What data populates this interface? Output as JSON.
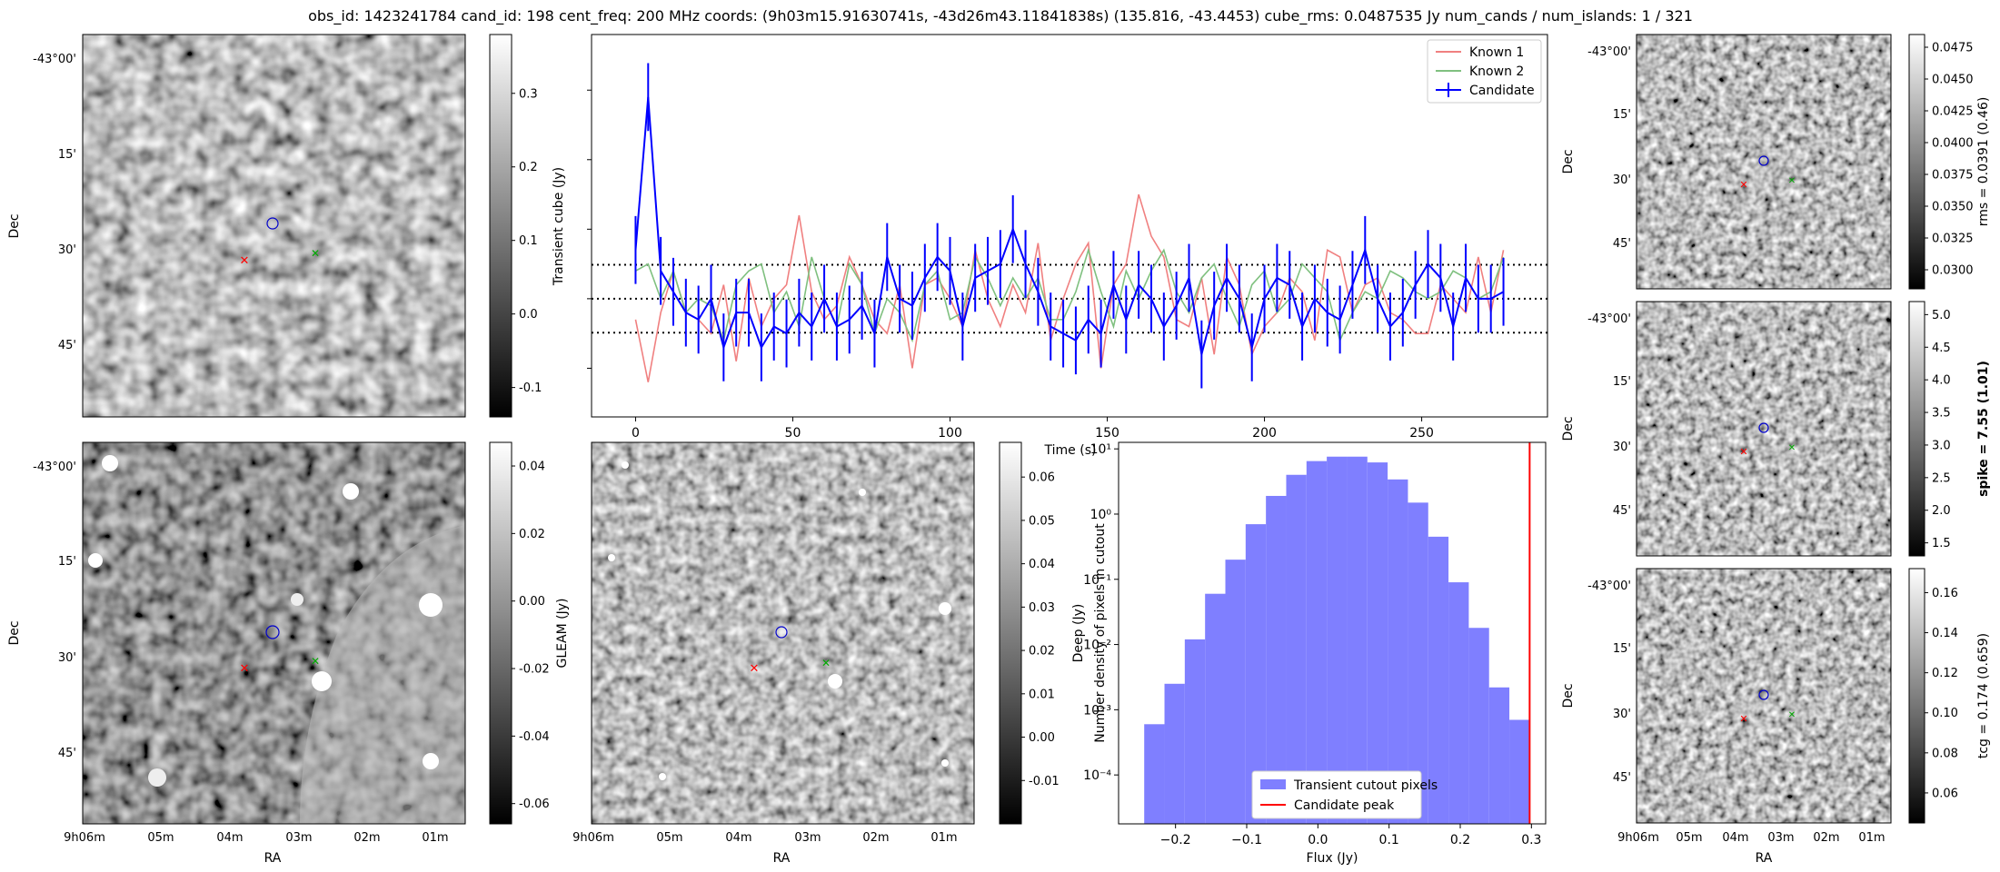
{
  "title": "obs_id: 1423241784 cand_id: 198 cent_freq: 200 MHz coords: (9h03m15.91630741s, -43d26m43.11841838s) (135.816, -43.4453) cube_rms: 0.0487535 Jy num_cands / num_islands: 1 / 321",
  "colors": {
    "known1": "#f08080",
    "known2": "#7fc07f",
    "candidate": "#0000ff",
    "hist": "#7f7fff",
    "peak": "#ff0000"
  },
  "dec_ticks": [
    "-43°00'",
    "15'",
    "30'",
    "45'"
  ],
  "ra_ticks": [
    "9h06m",
    "05m",
    "04m",
    "03m",
    "02m",
    "01m"
  ],
  "axis_labels": {
    "dec": "Dec",
    "ra": "RA"
  },
  "images": [
    {
      "id": "transient",
      "cbar_label": "Transient cube (Jy)",
      "cbar_ticks": [
        "0.3",
        "0.2",
        "0.1",
        "0.0",
        "-0.1"
      ],
      "cbar_values": [
        0.3,
        0.2,
        0.1,
        0.0,
        -0.1
      ],
      "cbar_range": [
        -0.14,
        0.38
      ]
    },
    {
      "id": "gleam",
      "cbar_label": "GLEAM (Jy)",
      "cbar_ticks": [
        "0.04",
        "0.02",
        "0.00",
        "-0.02",
        "-0.04",
        "-0.06"
      ],
      "cbar_values": [
        0.04,
        0.02,
        0.0,
        -0.02,
        -0.04,
        -0.06
      ],
      "cbar_range": [
        -0.066,
        0.047
      ]
    },
    {
      "id": "deep",
      "cbar_label": "Deep (Jy)",
      "cbar_ticks": [
        "0.06",
        "0.05",
        "0.04",
        "0.03",
        "0.02",
        "0.01",
        "0.00",
        "-0.01"
      ],
      "cbar_values": [
        0.06,
        0.05,
        0.04,
        0.03,
        0.02,
        0.01,
        0.0,
        -0.01
      ],
      "cbar_range": [
        -0.02,
        0.068
      ]
    },
    {
      "id": "rms",
      "cbar_label": "rms = 0.0391 (0.46)",
      "cbar_ticks": [
        "0.0475",
        "0.0450",
        "0.0425",
        "0.0400",
        "0.0375",
        "0.0350",
        "0.0325",
        "0.0300"
      ],
      "cbar_values": [
        0.0475,
        0.045,
        0.0425,
        0.04,
        0.0375,
        0.035,
        0.0325,
        0.03
      ],
      "cbar_range": [
        0.0285,
        0.0485
      ]
    },
    {
      "id": "spike",
      "cbar_label": "spike = 7.55 (1.01)",
      "cbar_ticks": [
        "5.0",
        "4.5",
        "4.0",
        "3.5",
        "3.0",
        "2.5",
        "2.0",
        "1.5"
      ],
      "cbar_values": [
        5.0,
        4.5,
        4.0,
        3.5,
        3.0,
        2.5,
        2.0,
        1.5
      ],
      "cbar_range": [
        1.3,
        5.2
      ]
    },
    {
      "id": "tcg",
      "cbar_label": "tcg = 0.174 (0.659)",
      "cbar_ticks": [
        "0.16",
        "0.14",
        "0.12",
        "0.10",
        "0.08",
        "0.06"
      ],
      "cbar_values": [
        0.16,
        0.14,
        0.12,
        0.1,
        0.08,
        0.06
      ],
      "cbar_range": [
        0.045,
        0.172
      ]
    }
  ],
  "chart_data": [
    {
      "type": "line",
      "ylabel": "Transient cube (Jy)",
      "xlabel": "Time (s)",
      "xlim": [
        -14,
        290
      ],
      "ylim": [
        -0.17,
        0.38
      ],
      "xticks": [
        0,
        50,
        100,
        150,
        200,
        250
      ],
      "hlines": [
        0.0488,
        0.0,
        -0.0488
      ],
      "legend": [
        "Known 1",
        "Known 2",
        "Candidate"
      ],
      "x": [
        0,
        4,
        8,
        12,
        16,
        20,
        24,
        28,
        32,
        36,
        40,
        44,
        48,
        52,
        56,
        60,
        64,
        68,
        72,
        76,
        80,
        84,
        88,
        92,
        96,
        100,
        104,
        108,
        112,
        116,
        120,
        124,
        128,
        132,
        136,
        140,
        144,
        148,
        152,
        156,
        160,
        164,
        168,
        172,
        176,
        180,
        184,
        188,
        192,
        196,
        200,
        204,
        208,
        212,
        216,
        220,
        224,
        228,
        232,
        236,
        240,
        244,
        248,
        252,
        256,
        260,
        264,
        268,
        272,
        276
      ],
      "series": [
        {
          "name": "Known 1",
          "values": [
            -0.03,
            -0.12,
            -0.02,
            0.04,
            -0.02,
            -0.03,
            -0.05,
            0.02,
            -0.09,
            0.03,
            -0.04,
            0.0,
            0.02,
            0.12,
            0.01,
            -0.03,
            -0.01,
            0.06,
            0.02,
            -0.03,
            -0.05,
            0.02,
            -0.1,
            0.02,
            0.03,
            0.0,
            -0.04,
            0.07,
            0.0,
            -0.04,
            0.02,
            -0.02,
            0.08,
            -0.06,
            0.0,
            0.05,
            0.08,
            -0.1,
            0.02,
            0.05,
            0.15,
            0.09,
            0.06,
            -0.03,
            -0.04,
            0.03,
            -0.08,
            0.06,
            0.02,
            -0.08,
            -0.04,
            -0.02,
            0.03,
            0.01,
            -0.06,
            0.07,
            0.06,
            -0.02,
            0.02,
            0.03,
            -0.02,
            -0.03,
            -0.05,
            -0.05,
            0.02,
            0.0,
            -0.02,
            0.06,
            -0.02,
            0.07
          ]
        },
        {
          "name": "Known 2",
          "values": [
            0.04,
            0.05,
            0.0,
            0.04,
            -0.02,
            0.0,
            -0.01,
            -0.06,
            0.02,
            0.04,
            0.05,
            -0.02,
            0.01,
            -0.04,
            0.06,
            0.0,
            -0.04,
            0.05,
            0.02,
            -0.05,
            0.0,
            -0.02,
            -0.06,
            0.02,
            0.04,
            -0.03,
            -0.02,
            0.06,
            0.03,
            -0.01,
            0.03,
            0.0,
            0.03,
            -0.03,
            -0.03,
            0.01,
            0.07,
            0.01,
            -0.04,
            0.04,
            0.0,
            0.04,
            0.07,
            0.01,
            -0.02,
            0.03,
            0.05,
            0.0,
            -0.04,
            0.02,
            0.04,
            -0.02,
            0.0,
            0.05,
            0.03,
            0.01,
            -0.06,
            -0.02,
            0.01,
            0.0,
            0.04,
            0.03,
            0.01,
            0.0,
            0.01,
            0.04,
            0.03,
            0.0,
            0.01,
            0.06
          ]
        },
        {
          "name": "Candidate",
          "values": [
            0.07,
            0.29,
            0.04,
            0.01,
            -0.02,
            -0.03,
            0.0,
            -0.07,
            -0.02,
            -0.02,
            -0.07,
            -0.04,
            -0.05,
            -0.02,
            -0.04,
            0.0,
            -0.04,
            -0.03,
            -0.01,
            -0.05,
            0.06,
            0.0,
            -0.01,
            0.03,
            0.06,
            0.04,
            -0.04,
            0.03,
            0.04,
            0.05,
            0.1,
            0.05,
            0.01,
            -0.04,
            -0.05,
            -0.06,
            -0.03,
            -0.05,
            0.02,
            -0.03,
            0.02,
            0.0,
            -0.04,
            -0.01,
            0.03,
            -0.08,
            -0.01,
            0.03,
            0.0,
            -0.07,
            0.0,
            0.03,
            0.02,
            -0.04,
            0.0,
            -0.02,
            -0.03,
            0.02,
            0.07,
            0.0,
            -0.04,
            -0.02,
            0.02,
            0.05,
            0.03,
            -0.04,
            0.03,
            0.0,
            0.0,
            0.01
          ],
          "error": 0.0488
        }
      ]
    },
    {
      "type": "bar",
      "xlabel": "Flux (Jy)",
      "ylabel": "Number density of pixels in cutout",
      "yscale": "log",
      "xlim": [
        -0.28,
        0.32
      ],
      "ylim_exp": [
        -4.75,
        1.1
      ],
      "xticks": [
        -0.2,
        -0.1,
        0.0,
        0.1,
        0.2,
        0.3
      ],
      "xtick_labels": [
        "−0.2",
        "−0.1",
        "0.0",
        "0.1",
        "0.2",
        "0.3"
      ],
      "yticks_exp": [
        1,
        0,
        -1,
        -2,
        -3,
        -4
      ],
      "ytick_labels": [
        "10¹",
        "10⁰",
        "10⁻¹",
        "10⁻²",
        "10⁻³",
        "10⁻⁴"
      ],
      "bin_edges": [
        -0.244,
        -0.2155,
        -0.187,
        -0.1585,
        -0.13,
        -0.1015,
        -0.073,
        -0.0445,
        -0.016,
        0.0125,
        0.041,
        0.0695,
        0.098,
        0.1265,
        0.155,
        0.1835,
        0.212,
        0.2405,
        0.269,
        0.2975
      ],
      "values": [
        0.0006,
        0.0025,
        0.012,
        0.06,
        0.2,
        0.7,
        1.9,
        4.0,
        6.5,
        7.6,
        7.6,
        6.2,
        3.4,
        1.5,
        0.45,
        0.09,
        0.018,
        0.0022,
        0.0007
      ],
      "candidate_peak": 0.2975,
      "legend": [
        "Transient cutout pixels",
        "Candidate peak"
      ]
    }
  ]
}
